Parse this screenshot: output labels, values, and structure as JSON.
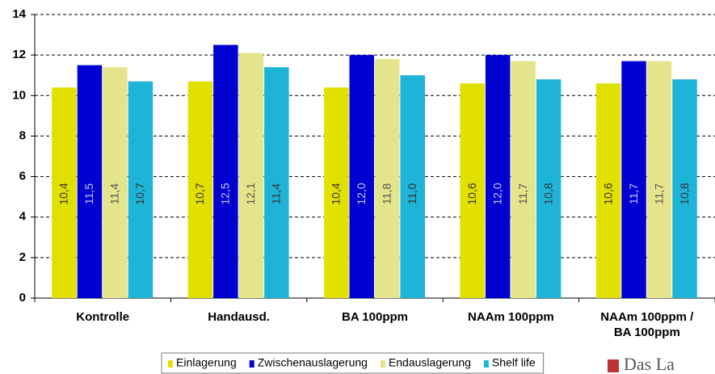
{
  "chart_data": {
    "type": "bar",
    "categories": [
      "Kontrolle",
      "Handausd.",
      "BA 100ppm",
      "NAAm 100ppm",
      "NAAm 100ppm /\nBA 100ppm"
    ],
    "series": [
      {
        "name": "Einlagerung",
        "color": "#e2e000",
        "label_color": "#333333",
        "values": [
          10.4,
          10.7,
          10.4,
          10.6,
          10.6
        ],
        "value_labels": [
          "10,4",
          "10,7",
          "10,4",
          "10,6",
          "10,6"
        ]
      },
      {
        "name": "Zwischenauslagerung",
        "color": "#0000d0",
        "label_color": "#c8c8e8",
        "values": [
          11.5,
          12.5,
          12.0,
          12.0,
          11.7
        ],
        "value_labels": [
          "11,5",
          "12,5",
          "12,0",
          "12,0",
          "11,7"
        ]
      },
      {
        "name": "Endauslagerung",
        "color": "#e4e48c",
        "label_color": "#555555",
        "values": [
          11.4,
          12.1,
          11.8,
          11.7,
          11.7
        ],
        "value_labels": [
          "11,4",
          "12,1",
          "11,8",
          "11,7",
          "11,7"
        ]
      },
      {
        "name": "Shelf life",
        "color": "#1eb4d8",
        "label_color": "#333333",
        "values": [
          10.7,
          11.4,
          11.0,
          10.8,
          10.8
        ],
        "value_labels": [
          "10,7",
          "11,4",
          "11,0",
          "10,8",
          "10,8"
        ]
      }
    ],
    "ylim": [
      0,
      14
    ],
    "yticks": [
      0,
      2,
      4,
      6,
      8,
      10,
      12,
      14
    ],
    "grid": true,
    "legend": "bottom",
    "logo_text": "Das La"
  }
}
